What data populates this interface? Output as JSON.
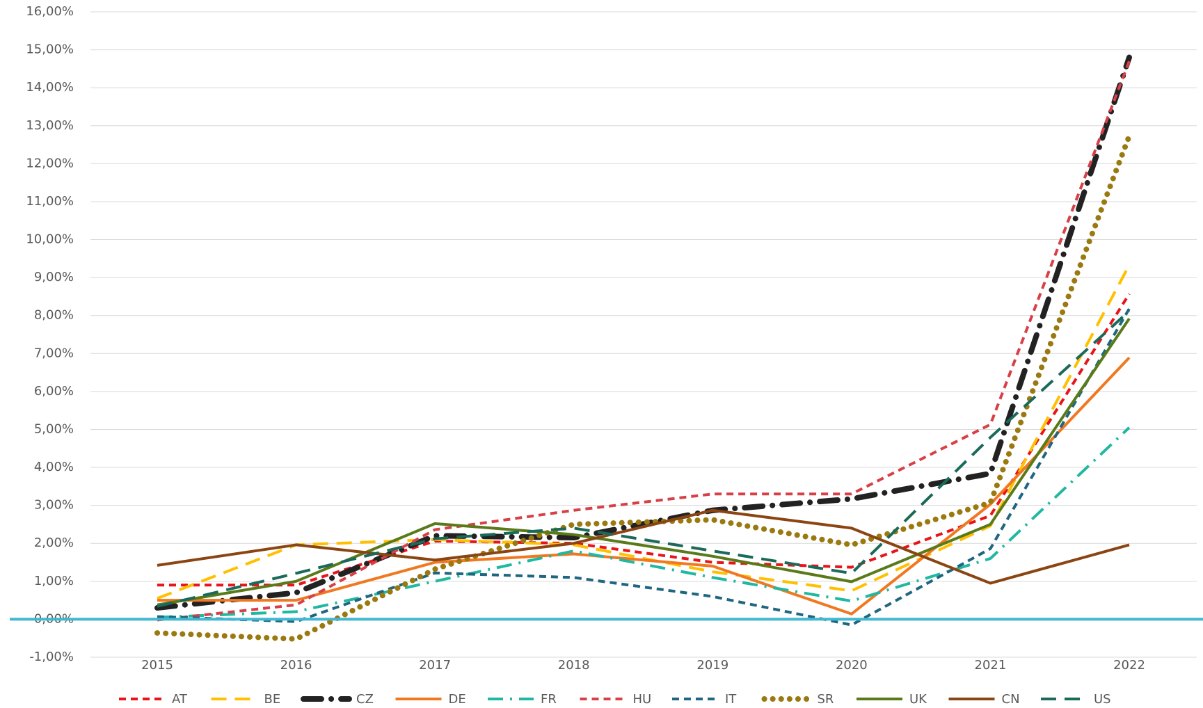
{
  "chart_data": {
    "type": "line",
    "categories": [
      "2015",
      "2016",
      "2017",
      "2018",
      "2019",
      "2020",
      "2021",
      "2022"
    ],
    "series": [
      {
        "name": "AT",
        "color": "#e8141a",
        "style": "dash",
        "values": [
          0.9,
          0.9,
          2.06,
          2.0,
          1.5,
          1.37,
          2.73,
          8.57
        ]
      },
      {
        "name": "BE",
        "color": "#ffc000",
        "style": "longdash",
        "values": [
          0.55,
          1.96,
          2.1,
          1.96,
          1.25,
          0.75,
          2.46,
          9.33
        ]
      },
      {
        "name": "CZ",
        "color": "#222222",
        "style": "longdashdot",
        "values": [
          0.3,
          0.7,
          2.2,
          2.15,
          2.87,
          3.17,
          3.84,
          14.8
        ]
      },
      {
        "name": "DE",
        "color": "#f07820",
        "style": "solid",
        "values": [
          0.5,
          0.5,
          1.5,
          1.72,
          1.4,
          0.14,
          3.03,
          6.89
        ]
      },
      {
        "name": "FR",
        "color": "#20b8a0",
        "style": "dashdot",
        "values": [
          0.05,
          0.2,
          1.0,
          1.8,
          1.1,
          0.48,
          1.6,
          5.05
        ]
      },
      {
        "name": "HU",
        "color": "#d84048",
        "style": "dash",
        "values": [
          -0.02,
          0.38,
          2.36,
          2.87,
          3.3,
          3.3,
          5.13,
          14.7
        ]
      },
      {
        "name": "IT",
        "color": "#1f6680",
        "style": "dash",
        "values": [
          0.07,
          -0.06,
          1.22,
          1.1,
          0.6,
          -0.15,
          1.86,
          8.18
        ]
      },
      {
        "name": "SR",
        "color": "#9a7a10",
        "style": "dot",
        "values": [
          -0.36,
          -0.52,
          1.32,
          2.5,
          2.62,
          1.96,
          3.07,
          12.73
        ]
      },
      {
        "name": "UK",
        "color": "#5a7a1a",
        "style": "solid",
        "values": [
          0.38,
          1.0,
          2.52,
          2.23,
          1.66,
          0.99,
          2.5,
          7.92
        ]
      },
      {
        "name": "CN",
        "color": "#8b4513",
        "style": "solid",
        "values": [
          1.42,
          1.96,
          1.56,
          2.0,
          2.87,
          2.4,
          0.95,
          1.96
        ]
      },
      {
        "name": "US",
        "color": "#1a6a5a",
        "style": "longdash",
        "values": [
          0.34,
          1.21,
          2.12,
          2.4,
          1.8,
          1.21,
          4.79,
          8.12
        ]
      }
    ],
    "ylim": [
      -1,
      16
    ],
    "yticks": [
      {
        "value": -1,
        "label": "-1,00%"
      },
      {
        "value": 0,
        "label": "0,00%"
      },
      {
        "value": 1,
        "label": "1,00%"
      },
      {
        "value": 2,
        "label": "2,00%"
      },
      {
        "value": 3,
        "label": "3,00%"
      },
      {
        "value": 4,
        "label": "4,00%"
      },
      {
        "value": 5,
        "label": "5,00%"
      },
      {
        "value": 6,
        "label": "6,00%"
      },
      {
        "value": 7,
        "label": "7,00%"
      },
      {
        "value": 8,
        "label": "8,00%"
      },
      {
        "value": 9,
        "label": "9,00%"
      },
      {
        "value": 10,
        "label": "10,00%"
      },
      {
        "value": 11,
        "label": "11,00%"
      },
      {
        "value": 12,
        "label": "12,00%"
      },
      {
        "value": 13,
        "label": "13,00%"
      },
      {
        "value": 14,
        "label": "14,00%"
      },
      {
        "value": 15,
        "label": "15,00%"
      },
      {
        "value": 16,
        "label": "16,00%"
      }
    ],
    "grid": true,
    "zero_line_color": "#40b8d0",
    "legend": "bottom"
  }
}
